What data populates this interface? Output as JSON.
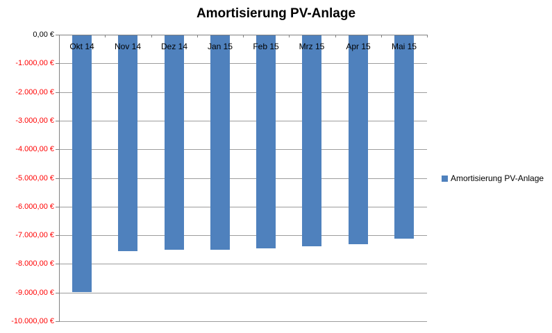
{
  "chart_data": {
    "type": "bar",
    "title": "Amortisierung PV-Anlage",
    "categories": [
      "Okt 14",
      "Nov 14",
      "Dez 14",
      "Jan 15",
      "Feb 15",
      "Mrz 15",
      "Apr 15",
      "Mai 15"
    ],
    "series": [
      {
        "name": "Amortisierung PV-Anlage",
        "values": [
          -8950,
          -7530,
          -7480,
          -7470,
          -7440,
          -7360,
          -7300,
          -7100
        ]
      }
    ],
    "xlabel": "",
    "ylabel": "",
    "ylim": [
      -10000,
      0
    ],
    "y_tick_step": 1000,
    "y_tick_labels": [
      "0,00 €",
      "-1.000,00 €",
      "-2.000,00 €",
      "-3.000,00 €",
      "-4.000,00 €",
      "-5.000,00 €",
      "-6.000,00 €",
      "-7.000,00 €",
      "-8.000,00 €",
      "-9.000,00 €",
      "-10.000,00 €"
    ],
    "grid": true,
    "legend": {
      "position": "right",
      "entries": [
        "Amortisierung PV-Anlage"
      ]
    },
    "colors": {
      "bar": "#4F81BD",
      "gridline": "#9C9C9C",
      "axis": "#808080",
      "tick_label_negative": "#FF0000",
      "tick_label_zero": "#000000",
      "title": "#000000",
      "background": "#FFFFFF"
    }
  }
}
